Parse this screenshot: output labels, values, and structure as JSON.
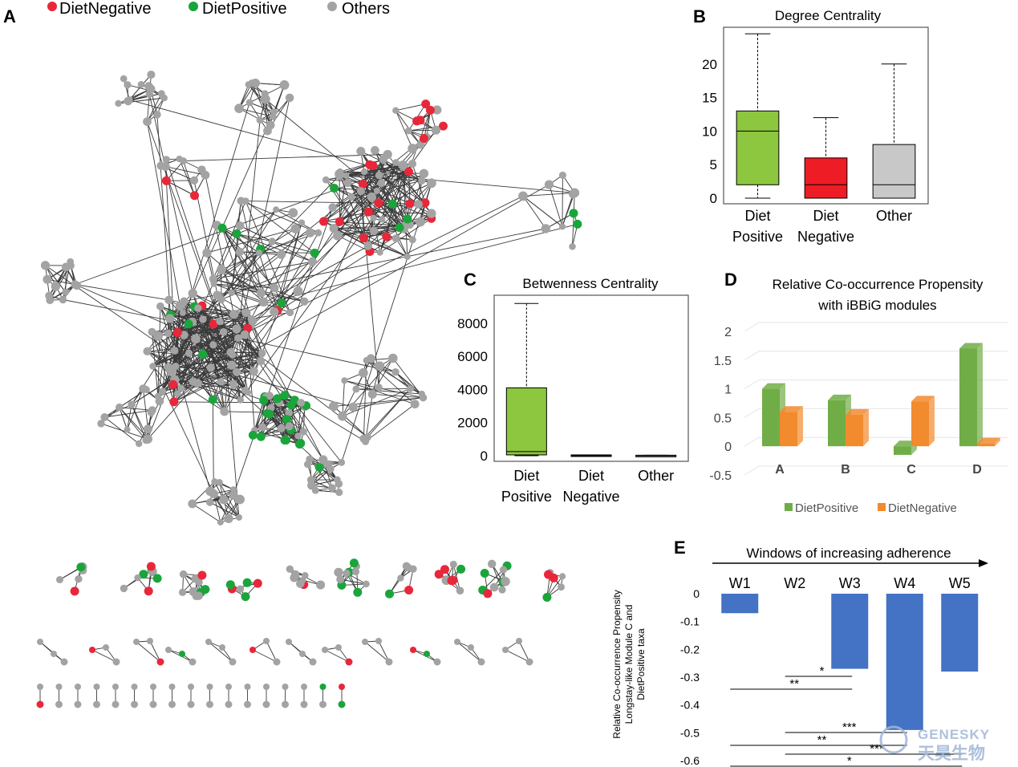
{
  "colors": {
    "diet_negative": "#e8273a",
    "diet_positive": "#1aa53b",
    "others": "#a3a3a3",
    "box_positive": "#8dc63f",
    "box_negative": "#ee1c24",
    "box_other": "#c8c8c8",
    "bar_green": "#70ad47",
    "bar_orange": "#f28a2e",
    "bar_blue": "#4472c4",
    "watermark": "#9fb6d6"
  },
  "panel_a": {
    "letter": "A",
    "legend": [
      {
        "label": "DietNegative",
        "color_key": "diet_negative"
      },
      {
        "label": "DietPositive",
        "color_key": "diet_positive"
      },
      {
        "label": "Others",
        "color_key": "others"
      }
    ]
  },
  "chart_data": [
    {
      "id": "B",
      "type": "box",
      "panel_letter": "B",
      "title": "Degree Centrality",
      "categories": [
        "Diet Positive",
        "Diet Negative",
        "Other"
      ],
      "category_lines": [
        [
          "Diet",
          "Positive"
        ],
        [
          "Diet",
          "Negative"
        ],
        [
          "Other"
        ]
      ],
      "ylim": [
        0,
        25
      ],
      "yticks": [
        0,
        5,
        10,
        15,
        20
      ],
      "boxes": [
        {
          "min": 0,
          "q1": 2,
          "median": 10,
          "q3": 13,
          "max": 24.5,
          "color_key": "box_positive"
        },
        {
          "min": 0,
          "q1": 0,
          "median": 2,
          "q3": 6,
          "max": 12,
          "color_key": "box_negative"
        },
        {
          "min": 0,
          "q1": 0,
          "median": 2,
          "q3": 8,
          "max": 20,
          "color_key": "box_other"
        }
      ]
    },
    {
      "id": "C",
      "type": "box",
      "panel_letter": "C",
      "title": "Betwenness Centrality",
      "categories": [
        "Diet Positive",
        "Diet Negative",
        "Other"
      ],
      "category_lines": [
        [
          "Diet",
          "Positive"
        ],
        [
          "Diet",
          "Negative"
        ],
        [
          "Other"
        ]
      ],
      "ylim": [
        0,
        9500
      ],
      "yticks": [
        0,
        2000,
        4000,
        6000,
        8000
      ],
      "boxes": [
        {
          "min": 0,
          "q1": 50,
          "median": 250,
          "q3": 4100,
          "max": 9200,
          "color_key": "box_positive"
        },
        {
          "min": 0,
          "q1": 0,
          "median": 0,
          "q3": 50,
          "max": 50,
          "color_key": "box_negative"
        },
        {
          "min": 0,
          "q1": 0,
          "median": 0,
          "q3": 30,
          "max": 30,
          "color_key": "box_other"
        }
      ]
    },
    {
      "id": "D",
      "type": "bar",
      "panel_letter": "D",
      "title_lines": [
        "Relative Co-occurrence Propensity",
        "with iBBiG modules"
      ],
      "categories": [
        "A",
        "B",
        "C",
        "D"
      ],
      "ylim": [
        -0.5,
        2
      ],
      "yticks": [
        -0.5,
        0,
        0.5,
        1,
        1.5,
        2
      ],
      "series": [
        {
          "name": "DietPositive",
          "color_key": "bar_green",
          "values": [
            1.0,
            0.8,
            -0.15,
            1.7
          ]
        },
        {
          "name": "DietNegative",
          "color_key": "bar_orange",
          "values": [
            0.6,
            0.55,
            0.78,
            0.05
          ]
        }
      ],
      "legend_position": "bottom"
    },
    {
      "id": "E",
      "type": "bar",
      "panel_letter": "E",
      "arrow_label": "Windows of increasing adherence",
      "ylabel_lines": [
        "Relative Co-occurrence Propensity",
        "Longstay-like Module C and",
        "DietPositive taxa"
      ],
      "categories": [
        "W1",
        "W2",
        "W3",
        "W4",
        "W5"
      ],
      "values": [
        -0.07,
        0.0,
        -0.27,
        -0.49,
        -0.28
      ],
      "ylim": [
        -0.6,
        0
      ],
      "yticks": [
        0,
        -0.1,
        -0.2,
        -0.3,
        -0.4,
        -0.5,
        -0.6
      ],
      "significance": [
        {
          "from": "W2",
          "to": "W3",
          "label": "*"
        },
        {
          "from": "W1",
          "to": "W3",
          "label": "**"
        },
        {
          "from": "W2",
          "to": "W4",
          "label": "***"
        },
        {
          "from": "W1",
          "to": "W4",
          "label": "**"
        },
        {
          "from": "W2",
          "to": "W5",
          "label": "***"
        },
        {
          "from": "W1",
          "to": "W5",
          "label": "*"
        }
      ]
    }
  ],
  "watermark": {
    "line1": "GENESKY",
    "line2": "天昊生物"
  }
}
